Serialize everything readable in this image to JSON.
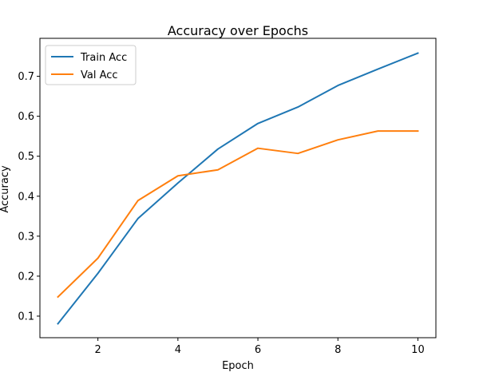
{
  "chart_data": {
    "type": "line",
    "title": "Accuracy over Epochs",
    "xlabel": "Epoch",
    "ylabel": "Accuracy",
    "x": [
      1,
      2,
      3,
      4,
      5,
      6,
      7,
      8,
      9,
      10
    ],
    "xlim": [
      0.55,
      10.45
    ],
    "ylim": [
      0.046,
      0.795
    ],
    "xticks": [
      2,
      4,
      6,
      8,
      10
    ],
    "yticks": [
      0.1,
      0.2,
      0.3,
      0.4,
      0.5,
      0.6,
      0.7
    ],
    "xtick_labels": [
      "2",
      "4",
      "6",
      "8",
      "10"
    ],
    "ytick_labels": [
      "0.1",
      "0.2",
      "0.3",
      "0.4",
      "0.5",
      "0.6",
      "0.7"
    ],
    "grid": false,
    "legend_position": "upper left",
    "series": [
      {
        "name": "Train Acc",
        "color": "#1f77b4",
        "values": [
          0.081,
          0.207,
          0.344,
          0.433,
          0.518,
          0.582,
          0.623,
          0.677,
          0.718,
          0.758
        ]
      },
      {
        "name": "Val Acc",
        "color": "#ff7f0e",
        "values": [
          0.148,
          0.245,
          0.389,
          0.451,
          0.466,
          0.52,
          0.507,
          0.541,
          0.563,
          0.563
        ]
      }
    ]
  }
}
